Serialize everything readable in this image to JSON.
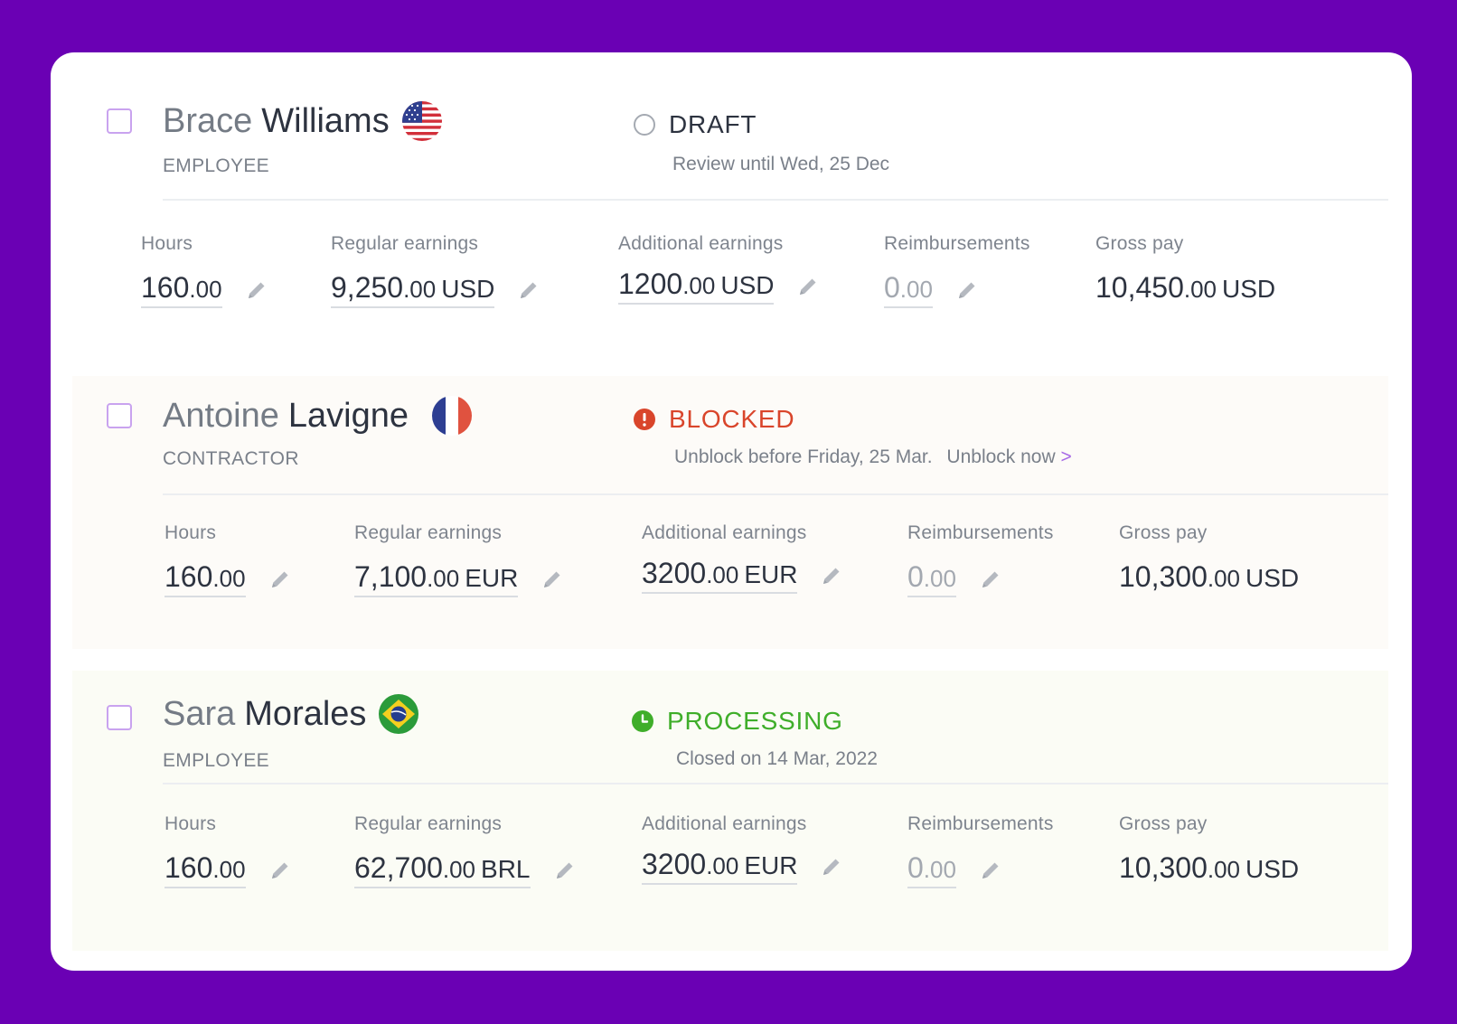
{
  "colors": {
    "background": "#6a00b4",
    "draft": "#2d3340",
    "blocked": "#d9452b",
    "processing": "#3fae2a",
    "checkbox_border": "#c9a3ef"
  },
  "labels": {
    "hours": "Hours",
    "regular": "Regular earnings",
    "additional": "Additional earnings",
    "reimbursements": "Reimbursements",
    "gross": "Gross pay"
  },
  "rows": [
    {
      "first_name": "Brace",
      "last_name": "Williams",
      "flag": "us-flag-icon",
      "role": "EMPLOYEE",
      "status": "DRAFT",
      "status_icon": "empty-circle-icon",
      "status_sub": "Review until Wed, 25 Dec",
      "hours": {
        "int": "160",
        "dec": ".00"
      },
      "regular": {
        "int": "9,250",
        "dec": ".00",
        "cur": "USD"
      },
      "additional": {
        "int": "1200",
        "dec": ".00",
        "cur": "USD"
      },
      "reimbursements": {
        "int": "0",
        "dec": ".00"
      },
      "gross": {
        "int": "10,450",
        "dec": ".00",
        "cur": "USD"
      }
    },
    {
      "first_name": "Antoine",
      "last_name": "Lavigne",
      "flag": "france-flag-icon",
      "role": "CONTRACTOR",
      "status": "BLOCKED",
      "status_icon": "exclamation-circle-icon",
      "status_sub": "Unblock before Friday, 25 Mar.",
      "status_link": "Unblock now",
      "status_link_chevron": ">",
      "hours": {
        "int": "160",
        "dec": ".00"
      },
      "regular": {
        "int": "7,100",
        "dec": ".00",
        "cur": "EUR"
      },
      "additional": {
        "int": "3200",
        "dec": ".00",
        "cur": "EUR"
      },
      "reimbursements": {
        "int": "0",
        "dec": ".00"
      },
      "gross": {
        "int": "10,300",
        "dec": ".00",
        "cur": "USD"
      }
    },
    {
      "first_name": "Sara",
      "last_name": "Morales",
      "flag": "brazil-flag-icon",
      "role": "EMPLOYEE",
      "status": "PROCESSING",
      "status_icon": "clock-icon",
      "status_sub": "Closed on 14 Mar, 2022",
      "hours": {
        "int": "160",
        "dec": ".00"
      },
      "regular": {
        "int": "62,700",
        "dec": ".00",
        "cur": "BRL"
      },
      "additional": {
        "int": "3200",
        "dec": ".00",
        "cur": "EUR"
      },
      "reimbursements": {
        "int": "0",
        "dec": ".00"
      },
      "gross": {
        "int": "10,300",
        "dec": ".00",
        "cur": "USD"
      }
    }
  ]
}
